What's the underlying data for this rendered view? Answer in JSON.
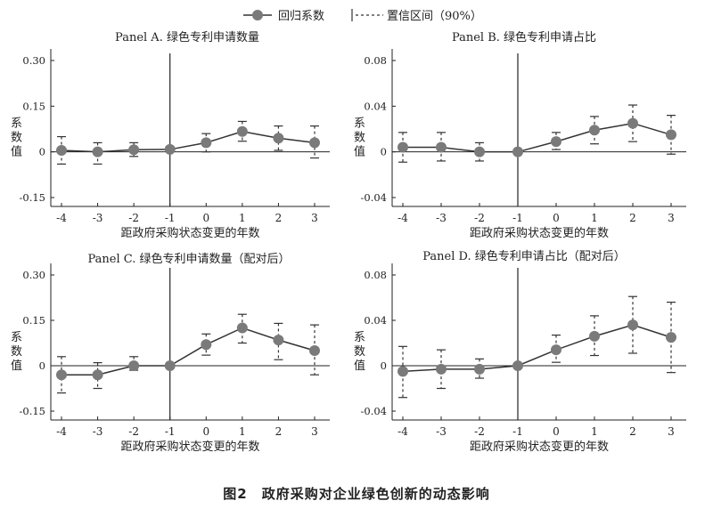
{
  "legend": {
    "coef_label": "回归系数",
    "ci_label": "置信区间（90%）"
  },
  "caption": "图2　政府采购对企业绿色创新的动态影响",
  "colors": {
    "marker": "#7a7a7a",
    "line": "#333333",
    "axis": "#222222"
  },
  "chart_data": [
    {
      "type": "line",
      "title": "Panel A. 绿色专利申请数量",
      "xlabel": "距政府采购状态变更的年数",
      "ylabel": "系数值",
      "x": [
        -4,
        -3,
        -2,
        -1,
        0,
        1,
        2,
        3
      ],
      "x_tick_labels": [
        "-4",
        "-3",
        "-2",
        "-1",
        "0",
        "1",
        "2",
        "3"
      ],
      "y_ticks": [
        0.3,
        0.15,
        0,
        -0.15
      ],
      "y_tick_labels": [
        "0.30",
        "0.15",
        "0",
        "-0.15"
      ],
      "ylim": [
        -0.15,
        0.3
      ],
      "series": [
        {
          "values": [
            0.005,
            0.0,
            0.007,
            0.008,
            0.03,
            0.067,
            0.045,
            0.03
          ],
          "ci_lower": [
            -0.04,
            -0.04,
            -0.015,
            0.008,
            0.0,
            0.035,
            0.005,
            -0.02
          ],
          "ci_upper": [
            0.05,
            0.03,
            0.03,
            0.008,
            0.06,
            0.1,
            0.085,
            0.085
          ]
        }
      ]
    },
    {
      "type": "line",
      "title": "Panel B. 绿色专利申请占比",
      "xlabel": "距政府采购状态变更的年数",
      "ylabel": "系数值",
      "x": [
        -4,
        -3,
        -2,
        -1,
        0,
        1,
        2,
        3
      ],
      "x_tick_labels": [
        "-4",
        "-3",
        "-2",
        "-1",
        "0",
        "1",
        "2",
        "3"
      ],
      "y_ticks": [
        0.08,
        0.04,
        0,
        -0.04
      ],
      "y_tick_labels": [
        "0.08",
        "0.04",
        "0",
        "-0.04"
      ],
      "ylim": [
        -0.04,
        0.08
      ],
      "series": [
        {
          "values": [
            0.004,
            0.004,
            0.0,
            0.0,
            0.009,
            0.019,
            0.025,
            0.015
          ],
          "ci_lower": [
            -0.009,
            -0.008,
            -0.008,
            0.0,
            0.002,
            0.007,
            0.009,
            -0.002
          ],
          "ci_upper": [
            0.017,
            0.017,
            0.008,
            0.0,
            0.017,
            0.031,
            0.041,
            0.032
          ]
        }
      ]
    },
    {
      "type": "line",
      "title": "Panel C. 绿色专利申请数量（配对后）",
      "xlabel": "距政府采购状态变更的年数",
      "ylabel": "系数值",
      "x": [
        -4,
        -3,
        -2,
        -1,
        0,
        1,
        2,
        3
      ],
      "x_tick_labels": [
        "-4",
        "-3",
        "-2",
        "-1",
        "0",
        "1",
        "2",
        "3"
      ],
      "y_ticks": [
        0.3,
        0.15,
        0,
        -0.15
      ],
      "y_tick_labels": [
        "0.30",
        "0.15",
        "0",
        "-0.15"
      ],
      "ylim": [
        -0.15,
        0.3
      ],
      "series": [
        {
          "values": [
            -0.03,
            -0.03,
            0.0,
            0.0,
            0.07,
            0.125,
            0.085,
            0.05
          ],
          "ci_lower": [
            -0.09,
            -0.075,
            -0.015,
            0.0,
            0.035,
            0.075,
            0.02,
            -0.03
          ],
          "ci_upper": [
            0.03,
            0.01,
            0.03,
            0.0,
            0.105,
            0.17,
            0.14,
            0.135
          ]
        }
      ]
    },
    {
      "type": "line",
      "title": "Panel D. 绿色专利申请占比（配对后）",
      "xlabel": "距政府采购状态变更的年数",
      "ylabel": "系数值",
      "x": [
        -4,
        -3,
        -2,
        -1,
        0,
        1,
        2,
        3
      ],
      "x_tick_labels": [
        "-4",
        "-3",
        "-2",
        "-1",
        "0",
        "1",
        "2",
        "3"
      ],
      "y_ticks": [
        0.08,
        0.04,
        0,
        -0.04
      ],
      "y_tick_labels": [
        "0.08",
        "0.04",
        "0",
        "-0.04"
      ],
      "ylim": [
        -0.04,
        0.08
      ],
      "series": [
        {
          "values": [
            -0.005,
            -0.003,
            -0.003,
            0.0,
            0.014,
            0.026,
            0.036,
            0.025
          ],
          "ci_lower": [
            -0.028,
            -0.02,
            -0.011,
            0.0,
            0.003,
            0.009,
            0.011,
            -0.006
          ],
          "ci_upper": [
            0.017,
            0.014,
            0.006,
            0.0,
            0.027,
            0.044,
            0.061,
            0.056
          ]
        }
      ]
    }
  ]
}
